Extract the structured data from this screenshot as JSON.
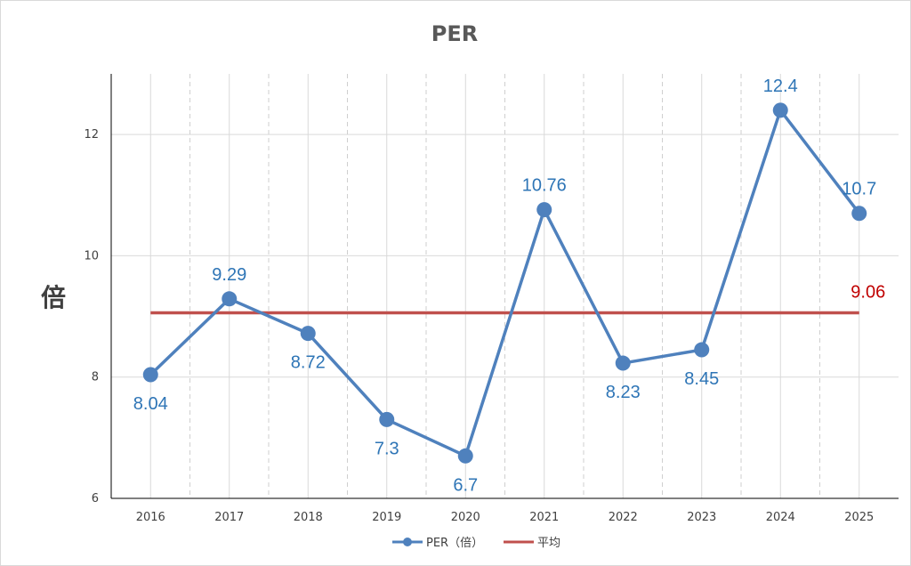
{
  "chart_data": {
    "type": "line",
    "title": "PER",
    "ylabel": "倍",
    "xlabel": "",
    "categories": [
      "2016",
      "2017",
      "2018",
      "2019",
      "2020",
      "2021",
      "2022",
      "2023",
      "2024",
      "2025"
    ],
    "series": [
      {
        "name": "PER（倍）",
        "values": [
          8.04,
          9.29,
          8.72,
          7.3,
          6.7,
          10.76,
          8.23,
          8.45,
          12.4,
          10.7
        ],
        "labels": [
          "8.04",
          "9.29",
          "8.72",
          "7.3",
          "6.7",
          "10.76",
          "8.23",
          "8.45",
          "12.4",
          "10.7"
        ],
        "label_positions": [
          "below",
          "above",
          "below",
          "below",
          "below",
          "above",
          "below",
          "below",
          "above",
          "above"
        ],
        "color": "#4472c4",
        "marker": "circle"
      },
      {
        "name": "平均",
        "value": 9.06,
        "label": "9.06",
        "color": "#c0504d"
      }
    ],
    "ylim": [
      6,
      13
    ],
    "yticks": [
      6,
      8,
      10,
      12
    ],
    "ytick_labels": [
      "6",
      "8",
      "10",
      "12"
    ],
    "grid": true,
    "legend": "bottom"
  },
  "colors": {
    "series_line": "#4f81bd",
    "data_label": "#2e75b6",
    "average_line": "#c0504d",
    "average_label": "#c00000"
  }
}
